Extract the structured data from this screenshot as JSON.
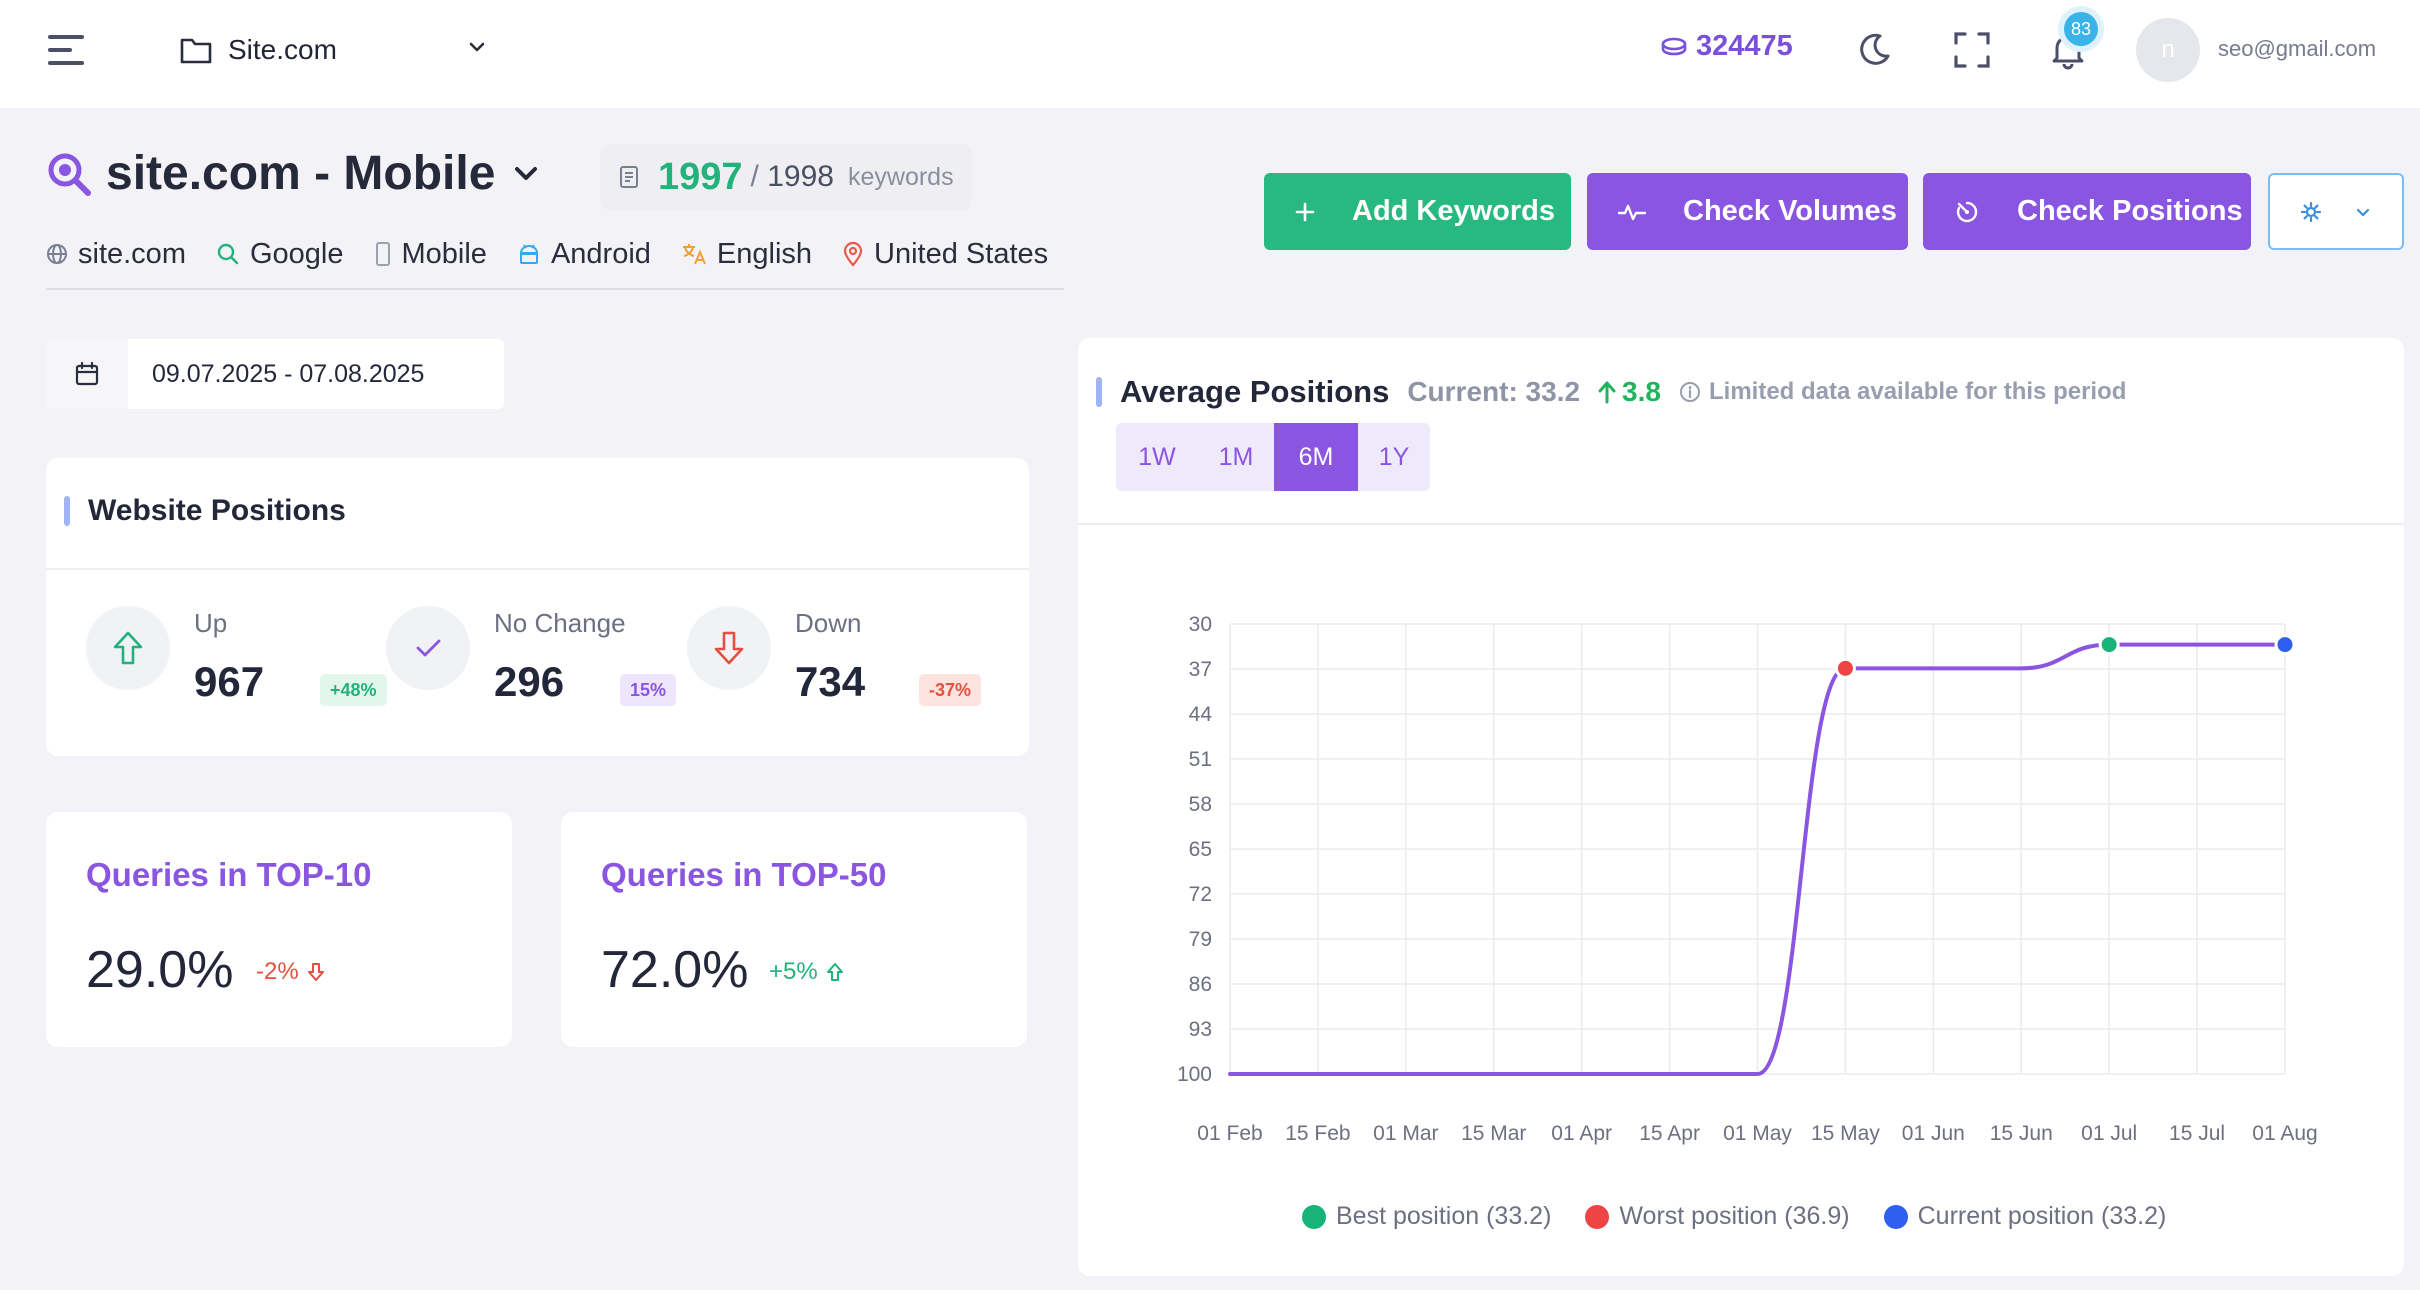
{
  "header": {
    "site_name": "Site.com",
    "credits": "324475",
    "notifications": "83",
    "avatar_initial": "n",
    "email": "seo@gmail.com"
  },
  "project": {
    "title": "site.com - Mobile",
    "keywords_checked": "1997",
    "keywords_total": "1998",
    "keywords_word": "keywords",
    "keywords_separator": "/",
    "meta": {
      "domain": "site.com",
      "engine": "Google",
      "device": "Mobile",
      "os": "Android",
      "language": "English",
      "country": "United States"
    }
  },
  "actions": {
    "add_keywords": "Add Keywords",
    "check_volumes": "Check Volumes",
    "check_positions": "Check Positions"
  },
  "date_range": "09.07.2025 - 07.08.2025",
  "website_positions": {
    "title": "Website Positions",
    "up": {
      "label": "Up",
      "value": "967",
      "badge": "+48%"
    },
    "no_change": {
      "label": "No Change",
      "value": "296",
      "badge": "15%"
    },
    "down": {
      "label": "Down",
      "value": "734",
      "badge": "-37%"
    }
  },
  "top10": {
    "title": "Queries in TOP-10",
    "value": "29.0%",
    "change": "-2%"
  },
  "top50": {
    "title": "Queries in TOP-50",
    "value": "72.0%",
    "change": "+5%"
  },
  "average_positions": {
    "title": "Average Positions",
    "current": "Current: 33.2",
    "delta": "3.8",
    "note": "Limited data available for this period",
    "periods": [
      "1W",
      "1M",
      "6M",
      "1Y"
    ],
    "active_period": "6M"
  },
  "colors": {
    "line": "#8a55e0",
    "best": "#18b377",
    "worst": "#ef4444",
    "current": "#2f5ff0"
  },
  "chart_data": {
    "type": "line",
    "x": [
      "01 Feb",
      "15 Feb",
      "01 Mar",
      "15 Mar",
      "01 Apr",
      "15 Apr",
      "01 May",
      "15 May",
      "01 Jun",
      "15 Jun",
      "01 Jul",
      "15 Jul",
      "01 Aug"
    ],
    "y_ticks": [
      30,
      37,
      44,
      51,
      58,
      65,
      72,
      79,
      86,
      93,
      100
    ],
    "ylim": [
      30,
      100
    ],
    "y_reversed": true,
    "series": [
      {
        "name": "Average position",
        "values": [
          100,
          100,
          100,
          100,
          100,
          100,
          100,
          36.9,
          36.9,
          36.9,
          33.2,
          33.2,
          33.2
        ]
      }
    ],
    "markers": [
      {
        "name": "Best position (33.2)",
        "x": "01 Jul",
        "y": 33.2,
        "color": "#18b377"
      },
      {
        "name": "Worst position (36.9)",
        "x": "15 May",
        "y": 36.9,
        "color": "#ef4444"
      },
      {
        "name": "Current position (33.2)",
        "x": "01 Aug",
        "y": 33.2,
        "color": "#2f5ff0"
      }
    ],
    "grid": true
  }
}
